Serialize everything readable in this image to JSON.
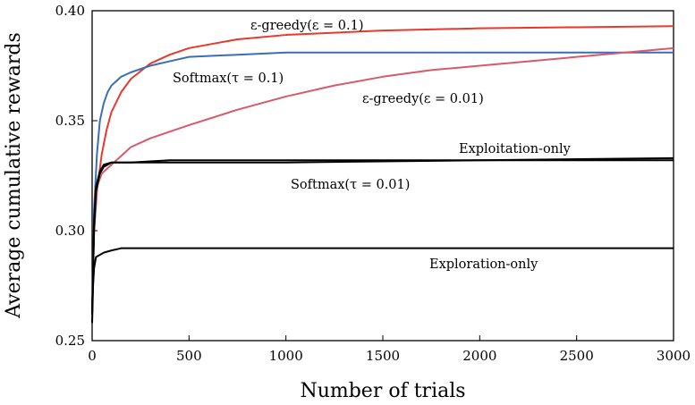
{
  "chart_data": {
    "type": "line",
    "xlabel": "Number of trials",
    "ylabel": "Average cumulative rewards",
    "xlim": [
      0,
      3000
    ],
    "ylim": [
      0.25,
      0.4
    ],
    "xticks": [
      "0",
      "500",
      "1000",
      "1500",
      "2000",
      "2500",
      "3000"
    ],
    "yticks": [
      "0.25",
      "0.30",
      "0.35",
      "0.40"
    ],
    "grid": false,
    "series": [
      {
        "label": "ε-greedy(ε = 0.1)",
        "color": "#e8392c",
        "points": [
          [
            0,
            0.262
          ],
          [
            10,
            0.3
          ],
          [
            25,
            0.318
          ],
          [
            50,
            0.335
          ],
          [
            75,
            0.346
          ],
          [
            100,
            0.354
          ],
          [
            150,
            0.363
          ],
          [
            200,
            0.369
          ],
          [
            300,
            0.376
          ],
          [
            400,
            0.38
          ],
          [
            500,
            0.383
          ],
          [
            750,
            0.387
          ],
          [
            1000,
            0.389
          ],
          [
            1500,
            0.391
          ],
          [
            2000,
            0.392
          ],
          [
            2500,
            0.3925
          ],
          [
            3000,
            0.393
          ]
        ]
      },
      {
        "label": "Softmax(τ = 0.1)",
        "color": "#3a6fb5",
        "points": [
          [
            0,
            0.262
          ],
          [
            10,
            0.31
          ],
          [
            25,
            0.335
          ],
          [
            40,
            0.35
          ],
          [
            60,
            0.358
          ],
          [
            80,
            0.363
          ],
          [
            100,
            0.366
          ],
          [
            150,
            0.37
          ],
          [
            200,
            0.372
          ],
          [
            300,
            0.375
          ],
          [
            400,
            0.377
          ],
          [
            500,
            0.379
          ],
          [
            750,
            0.38
          ],
          [
            1000,
            0.381
          ],
          [
            2000,
            0.381
          ],
          [
            3000,
            0.381
          ]
        ]
      },
      {
        "label": "ε-greedy(ε = 0.01)",
        "color": "#d85a6a",
        "points": [
          [
            0,
            0.262
          ],
          [
            10,
            0.3
          ],
          [
            25,
            0.32
          ],
          [
            50,
            0.326
          ],
          [
            100,
            0.33
          ],
          [
            200,
            0.338
          ],
          [
            300,
            0.342
          ],
          [
            500,
            0.348
          ],
          [
            750,
            0.355
          ],
          [
            1000,
            0.361
          ],
          [
            1250,
            0.366
          ],
          [
            1500,
            0.37
          ],
          [
            1750,
            0.373
          ],
          [
            2000,
            0.375
          ],
          [
            2250,
            0.377
          ],
          [
            2500,
            0.379
          ],
          [
            2750,
            0.381
          ],
          [
            3000,
            0.383
          ]
        ]
      },
      {
        "label": "Exploitation-only",
        "color": "#000000",
        "points": [
          [
            0,
            0.262
          ],
          [
            10,
            0.3
          ],
          [
            20,
            0.318
          ],
          [
            40,
            0.326
          ],
          [
            60,
            0.329
          ],
          [
            100,
            0.331
          ],
          [
            200,
            0.331
          ],
          [
            400,
            0.332
          ],
          [
            1000,
            0.332
          ],
          [
            2000,
            0.332
          ],
          [
            3000,
            0.333
          ]
        ]
      },
      {
        "label": "Softmax(τ = 0.01)",
        "color": "#000000",
        "points": [
          [
            0,
            0.262
          ],
          [
            10,
            0.305
          ],
          [
            20,
            0.32
          ],
          [
            40,
            0.327
          ],
          [
            60,
            0.33
          ],
          [
            100,
            0.331
          ],
          [
            200,
            0.331
          ],
          [
            400,
            0.331
          ],
          [
            1000,
            0.331
          ],
          [
            2000,
            0.332
          ],
          [
            3000,
            0.332
          ]
        ]
      },
      {
        "label": "Exploration-only",
        "color": "#000000",
        "points": [
          [
            0,
            0.258
          ],
          [
            5,
            0.275
          ],
          [
            10,
            0.283
          ],
          [
            20,
            0.288
          ],
          [
            40,
            0.289
          ],
          [
            60,
            0.29
          ],
          [
            100,
            0.291
          ],
          [
            150,
            0.292
          ],
          [
            300,
            0.292
          ],
          [
            600,
            0.292
          ],
          [
            1000,
            0.292
          ],
          [
            1500,
            0.292
          ],
          [
            2000,
            0.292
          ],
          [
            3000,
            0.292
          ]
        ]
      }
    ]
  }
}
